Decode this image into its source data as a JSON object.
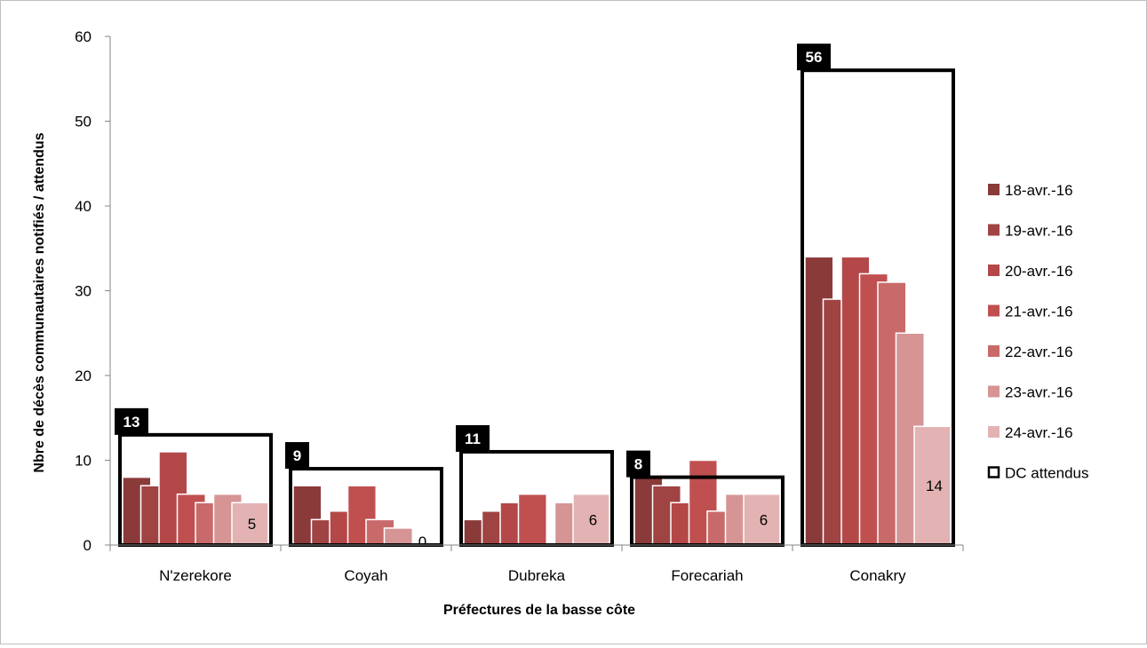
{
  "chart_data": {
    "type": "bar",
    "title": "",
    "xlabel": "Préfectures de la basse côte",
    "ylabel": "Nbre de décès communautaires notifiés / attendus",
    "ylim": [
      0,
      60
    ],
    "yticks": [
      "0",
      "10",
      "20",
      "30",
      "40",
      "50",
      "60"
    ],
    "categories": [
      "N'zerekore",
      "Coyah",
      "Dubreka",
      "Forecariah",
      "Conakry"
    ],
    "series": [
      {
        "name": "18-avr.-16",
        "color": "#8b3a3a",
        "values": [
          8,
          7,
          3,
          8,
          34
        ]
      },
      {
        "name": "19-avr.-16",
        "color": "#a04343",
        "values": [
          7,
          3,
          4,
          7,
          29
        ]
      },
      {
        "name": "20-avr.-16",
        "color": "#b44848",
        "values": [
          11,
          4,
          5,
          5,
          34
        ]
      },
      {
        "name": "21-avr.-16",
        "color": "#c05050",
        "values": [
          6,
          7,
          6,
          10,
          32
        ]
      },
      {
        "name": "22-avr.-16",
        "color": "#c96a6a",
        "values": [
          5,
          3,
          0,
          4,
          31
        ]
      },
      {
        "name": "23-avr.-16",
        "color": "#d69494",
        "values": [
          6,
          2,
          5,
          6,
          25
        ]
      },
      {
        "name": "24-avr.-16",
        "color": "#e3b3b3",
        "values": [
          5,
          0,
          6,
          6,
          14
        ]
      }
    ],
    "expected": {
      "name": "DC attendus",
      "values": [
        13,
        9,
        11,
        8,
        56
      ],
      "labels": [
        "13",
        "9",
        "11",
        "8",
        "56"
      ]
    },
    "data_labels": {
      "series_index": 6,
      "labels": [
        "5",
        "0",
        "6",
        "6",
        "14"
      ]
    },
    "legend_position": "right",
    "grid": false
  }
}
